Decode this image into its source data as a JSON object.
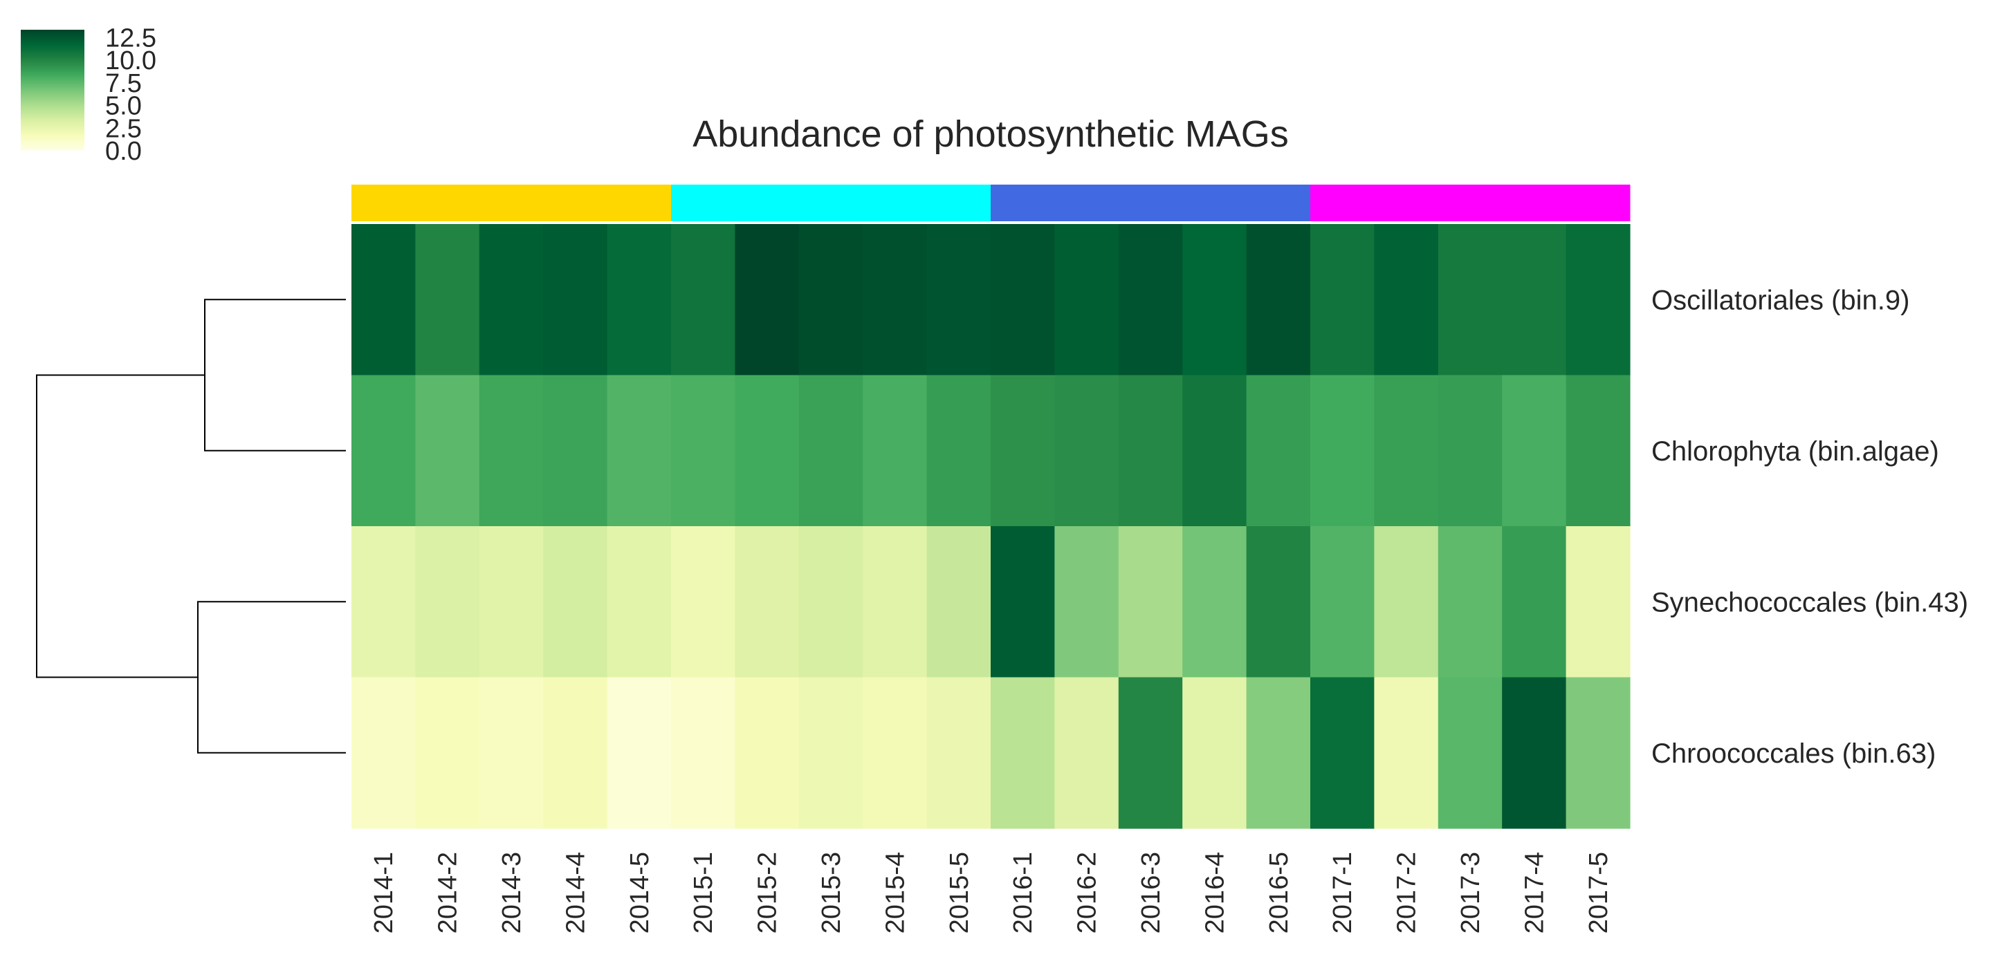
{
  "chart_data": {
    "type": "heatmap",
    "title": "Abundance of photosynthetic MAGs",
    "columns": [
      "2014-1",
      "2014-2",
      "2014-3",
      "2014-4",
      "2014-5",
      "2015-1",
      "2015-2",
      "2015-3",
      "2015-4",
      "2015-5",
      "2016-1",
      "2016-2",
      "2016-3",
      "2016-4",
      "2016-5",
      "2017-1",
      "2017-2",
      "2017-3",
      "2017-4",
      "2017-5"
    ],
    "rows": [
      "Oscillatoriales (bin.9)",
      "Chlorophyta (bin.algae)",
      "Synechococcales (bin.43)",
      "Chroococcales (bin.63)"
    ],
    "values": [
      [
        12.1,
        10.0,
        12.0,
        12.2,
        11.4,
        10.9,
        13.3,
        12.9,
        12.8,
        12.6,
        12.7,
        12.1,
        12.6,
        11.7,
        12.8,
        10.9,
        11.9,
        10.6,
        10.6,
        11.3
      ],
      [
        8.4,
        7.5,
        8.5,
        8.6,
        7.8,
        8.0,
        8.3,
        8.7,
        8.1,
        8.9,
        9.4,
        9.6,
        9.8,
        10.8,
        8.9,
        8.3,
        8.8,
        8.9,
        8.1,
        9.1
      ],
      [
        2.6,
        3.2,
        2.9,
        3.5,
        2.8,
        2.1,
        3.0,
        3.4,
        2.9,
        4.0,
        12.2,
        6.4,
        5.1,
        6.8,
        10.0,
        7.8,
        4.3,
        7.4,
        8.9,
        2.5
      ],
      [
        1.2,
        1.6,
        1.4,
        1.8,
        0.6,
        0.9,
        1.8,
        2.2,
        1.9,
        2.3,
        4.5,
        3.0,
        9.9,
        2.8,
        6.2,
        11.2,
        2.1,
        7.6,
        12.5,
        6.4
      ]
    ],
    "colormap": "YlGn",
    "vmin": 0,
    "vmax": 13.3,
    "colorbar_ticks": [
      "0.0",
      "2.5",
      "5.0",
      "7.5",
      "10.0",
      "12.5"
    ],
    "year_colors": [
      "#FFD700",
      "#00FFFF",
      "#4169E1",
      "#FF00FF"
    ],
    "row_dendrogram": [
      [
        "Oscillatoriales (bin.9)",
        "Chlorophyta (bin.algae)"
      ],
      [
        "Synechococcales (bin.43)",
        "Chroococcales (bin.63)"
      ]
    ]
  }
}
